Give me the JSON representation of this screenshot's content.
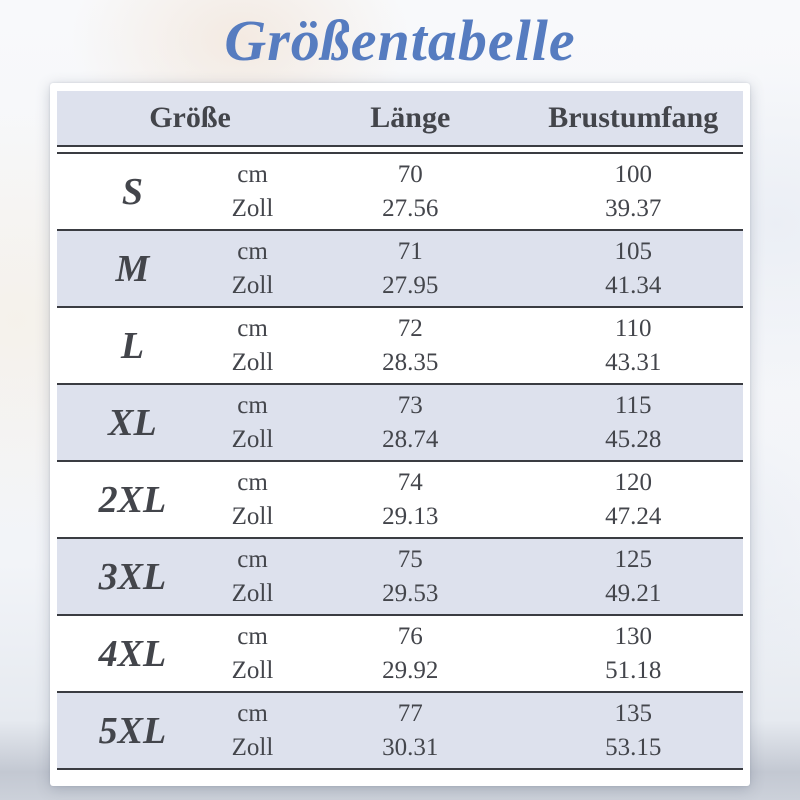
{
  "page": {
    "title": "Größentabelle"
  },
  "chart_data": {
    "type": "table",
    "title": "Größentabelle",
    "columns": [
      "Größe",
      "Länge",
      "Brustumfang"
    ],
    "unit_labels": {
      "cm": "cm",
      "zoll": "Zoll"
    },
    "rows": [
      {
        "size": "S",
        "cm_length": "70",
        "cm_chest": "100",
        "zoll_length": "27.56",
        "zoll_chest": "39.37"
      },
      {
        "size": "M",
        "cm_length": "71",
        "cm_chest": "105",
        "zoll_length": "27.95",
        "zoll_chest": "41.34"
      },
      {
        "size": "L",
        "cm_length": "72",
        "cm_chest": "110",
        "zoll_length": "28.35",
        "zoll_chest": "43.31"
      },
      {
        "size": "XL",
        "cm_length": "73",
        "cm_chest": "115",
        "zoll_length": "28.74",
        "zoll_chest": "45.28"
      },
      {
        "size": "2XL",
        "cm_length": "74",
        "cm_chest": "120",
        "zoll_length": "29.13",
        "zoll_chest": "47.24"
      },
      {
        "size": "3XL",
        "cm_length": "75",
        "cm_chest": "125",
        "zoll_length": "29.53",
        "zoll_chest": "49.21"
      },
      {
        "size": "4XL",
        "cm_length": "76",
        "cm_chest": "130",
        "zoll_length": "29.92",
        "zoll_chest": "51.18"
      },
      {
        "size": "5XL",
        "cm_length": "77",
        "cm_chest": "135",
        "zoll_length": "30.31",
        "zoll_chest": "53.15"
      }
    ]
  },
  "colors": {
    "title_blue": "#567cc0",
    "stripe_lavender": "#dde1ed",
    "text_dark": "#43454b",
    "line_dark": "#3a3c42"
  }
}
